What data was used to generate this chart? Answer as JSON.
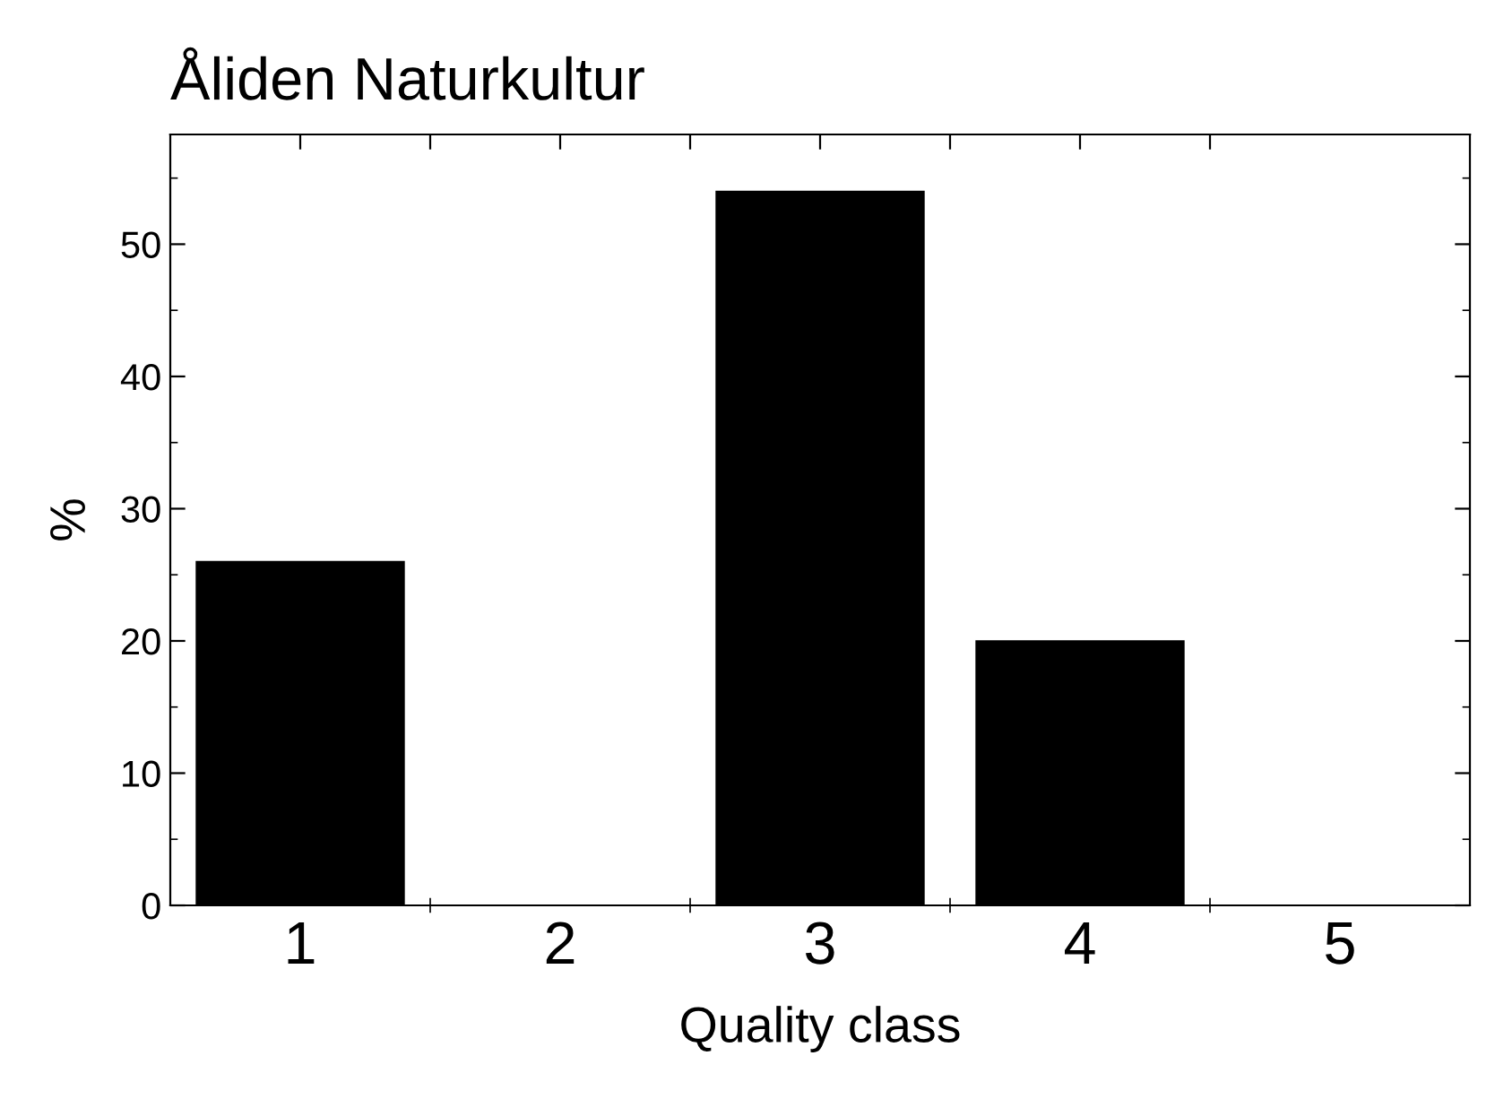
{
  "chart_data": {
    "type": "bar",
    "title": "Åliden Naturkultur",
    "xlabel": "Quality class",
    "ylabel": "%",
    "categories": [
      "1",
      "2",
      "3",
      "4",
      "5"
    ],
    "values": [
      26,
      0,
      54,
      20,
      0
    ],
    "color": "#000000",
    "ylim": [
      0,
      58.3
    ],
    "yticks": [
      0,
      10,
      20,
      30,
      40,
      50
    ],
    "grid": false,
    "legend": false
  }
}
